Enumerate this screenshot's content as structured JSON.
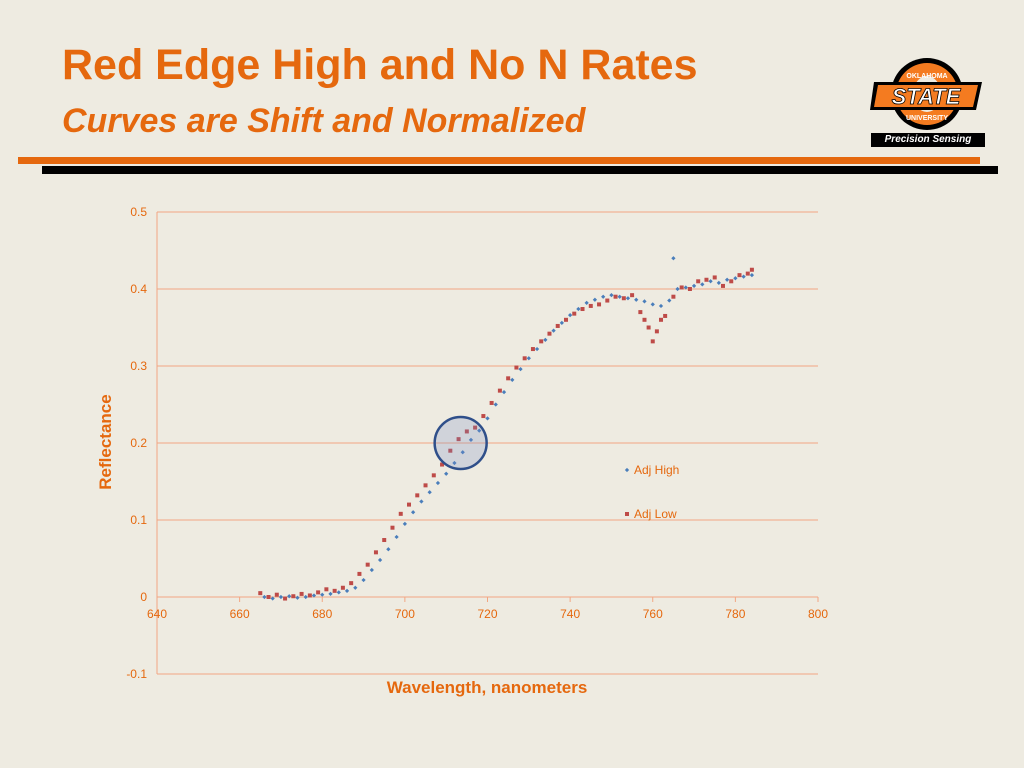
{
  "slide": {
    "title": "Red Edge High and No N Rates",
    "subtitle": "Curves are Shift and Normalized"
  },
  "logo": {
    "top_text": "OKLAHOMA",
    "main_text": "STATE",
    "bottom_text": "UNIVERSITY",
    "caption": "Precision Sensing",
    "colors": {
      "orange": "#f47b20",
      "black": "#000000"
    }
  },
  "chart_data": {
    "type": "scatter",
    "title": "",
    "xlabel": "Wavelength,  nanometers",
    "ylabel": "Reflectance",
    "xlim": [
      640,
      800
    ],
    "ylim": [
      -0.1,
      0.5
    ],
    "xticks": [
      640,
      660,
      680,
      700,
      720,
      740,
      760,
      780,
      800
    ],
    "yticks": [
      -0.1,
      0,
      0.1,
      0.2,
      0.3,
      0.4,
      0.5
    ],
    "xtick_labels": [
      "640",
      "660",
      "680",
      "700",
      "720",
      "740",
      "760",
      "780",
      "800"
    ],
    "ytick_labels": [
      "-0.1",
      "0",
      "0.1",
      "0.2",
      "0.3",
      "0.4",
      "0.5"
    ],
    "grid": "horizontal",
    "legend_position": "right",
    "colors": {
      "high": "#4a7ebb",
      "low": "#be4b48",
      "grid": "#f2a682",
      "text": "#e5680e",
      "circle": "#2f4f8a"
    },
    "annotation": {
      "type": "circle",
      "center": [
        713.5,
        0.2
      ]
    },
    "series": [
      {
        "name": "Adj High",
        "marker": "diamond",
        "x": [
          666,
          668,
          670,
          672,
          674,
          676,
          678,
          680,
          682,
          684,
          686,
          688,
          690,
          692,
          694,
          696,
          698,
          700,
          702,
          704,
          706,
          708,
          710,
          712,
          714,
          716,
          718,
          720,
          722,
          724,
          726,
          728,
          730,
          732,
          734,
          736,
          738,
          740,
          742,
          744,
          746,
          748,
          750,
          752,
          754,
          756,
          758,
          760,
          762,
          764,
          765,
          766,
          768,
          770,
          772,
          774,
          776,
          778,
          780,
          782,
          784
        ],
        "y": [
          0.0,
          -0.002,
          0.0,
          0.001,
          -0.001,
          0.0,
          0.002,
          0.003,
          0.004,
          0.006,
          0.008,
          0.012,
          0.022,
          0.035,
          0.048,
          0.062,
          0.078,
          0.095,
          0.11,
          0.124,
          0.136,
          0.148,
          0.16,
          0.174,
          0.188,
          0.204,
          0.216,
          0.232,
          0.25,
          0.266,
          0.282,
          0.296,
          0.31,
          0.322,
          0.334,
          0.346,
          0.356,
          0.366,
          0.374,
          0.382,
          0.386,
          0.39,
          0.392,
          0.39,
          0.388,
          0.386,
          0.384,
          0.38,
          0.378,
          0.385,
          0.44,
          0.4,
          0.402,
          0.404,
          0.406,
          0.41,
          0.408,
          0.412,
          0.414,
          0.416,
          0.418
        ]
      },
      {
        "name": "Adj Low",
        "marker": "square",
        "x": [
          665,
          667,
          669,
          671,
          673,
          675,
          677,
          679,
          681,
          683,
          685,
          687,
          689,
          691,
          693,
          695,
          697,
          699,
          701,
          703,
          705,
          707,
          709,
          711,
          713,
          715,
          717,
          719,
          721,
          723,
          725,
          727,
          729,
          731,
          733,
          735,
          737,
          739,
          741,
          743,
          745,
          747,
          749,
          751,
          753,
          755,
          757,
          758,
          759,
          760,
          761,
          762,
          763,
          765,
          767,
          769,
          771,
          773,
          775,
          777,
          779,
          781,
          783,
          784
        ],
        "y": [
          0.005,
          0.0,
          0.003,
          -0.002,
          0.001,
          0.004,
          0.002,
          0.006,
          0.01,
          0.008,
          0.012,
          0.018,
          0.03,
          0.042,
          0.058,
          0.074,
          0.09,
          0.108,
          0.12,
          0.132,
          0.145,
          0.158,
          0.172,
          0.19,
          0.205,
          0.215,
          0.22,
          0.235,
          0.252,
          0.268,
          0.284,
          0.298,
          0.31,
          0.322,
          0.332,
          0.342,
          0.352,
          0.36,
          0.368,
          0.374,
          0.378,
          0.38,
          0.385,
          0.39,
          0.388,
          0.392,
          0.37,
          0.36,
          0.35,
          0.332,
          0.345,
          0.36,
          0.365,
          0.39,
          0.402,
          0.4,
          0.41,
          0.412,
          0.415,
          0.404,
          0.41,
          0.418,
          0.42,
          0.425
        ]
      }
    ]
  }
}
